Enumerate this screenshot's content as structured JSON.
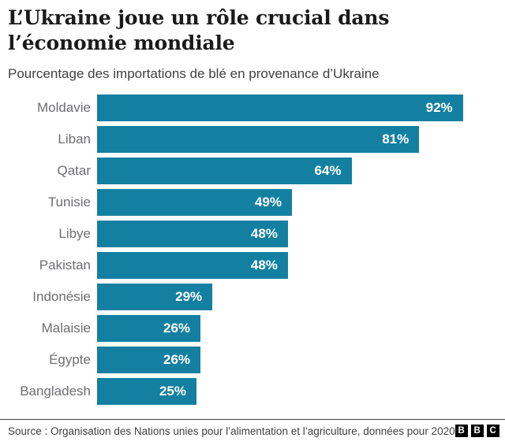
{
  "header": {
    "title_lines": [
      "L’Ukraine joue un rôle crucial dans",
      "l’économie mondiale"
    ],
    "subtitle": "Pourcentage des importations de blé en provenance d’Ukraine"
  },
  "chart_data": {
    "type": "bar",
    "orientation": "horizontal",
    "title": "L’Ukraine joue un rôle crucial dans l’économie mondiale",
    "subtitle": "Pourcentage des importations de blé en provenance d’Ukraine",
    "categories": [
      "Moldavie",
      "Liban",
      "Qatar",
      "Tunisie",
      "Libye",
      "Pakistan",
      "Indonésie",
      "Malaisie",
      "Égypte",
      "Bangladesh"
    ],
    "values": [
      92,
      81,
      64,
      49,
      48,
      48,
      29,
      26,
      26,
      25
    ],
    "value_suffix": "%",
    "xlim": [
      0,
      100
    ],
    "grid": false,
    "legend": false,
    "bar_color": "#1380A1",
    "value_label_color": "#FFFFFF",
    "category_label_color": "#6E6E73"
  },
  "footer": {
    "source": "Source : Organisation des Nations unies pour l’alimentation et l’agriculture, données pour 2020",
    "logo": {
      "name": "BBC",
      "letters": [
        "B",
        "B",
        "C"
      ]
    }
  }
}
